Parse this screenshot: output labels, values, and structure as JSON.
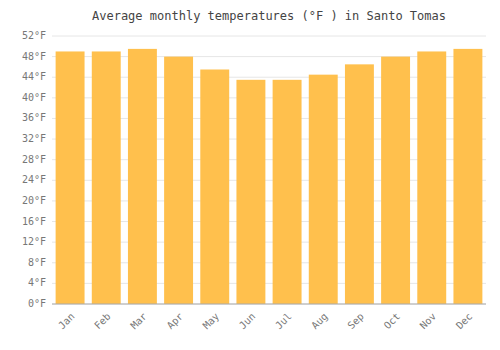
{
  "chart_data": {
    "type": "bar",
    "title": "Average monthly temperatures (°F ) in Santo Tomas",
    "categories": [
      "Jan",
      "Feb",
      "Mar",
      "Apr",
      "May",
      "Jun",
      "Jul",
      "Aug",
      "Sep",
      "Oct",
      "Nov",
      "Dec"
    ],
    "values": [
      49.0,
      49.0,
      49.5,
      48.0,
      45.5,
      43.5,
      43.5,
      44.5,
      46.5,
      48.0,
      49.0,
      49.5
    ],
    "color": "#FFC04D",
    "ylim": [
      0,
      52
    ],
    "yticks": [
      {
        "value": 0,
        "label": "0°F"
      },
      {
        "value": 4,
        "label": "4°F"
      },
      {
        "value": 8,
        "label": "8°F"
      },
      {
        "value": 12,
        "label": "12°F"
      },
      {
        "value": 16,
        "label": "16°F"
      },
      {
        "value": 20,
        "label": "20°F"
      },
      {
        "value": 24,
        "label": "24°F"
      },
      {
        "value": 28,
        "label": "28°F"
      },
      {
        "value": 32,
        "label": "32°F"
      },
      {
        "value": 36,
        "label": "36°F"
      },
      {
        "value": 40,
        "label": "40°F"
      },
      {
        "value": 44,
        "label": "44°F"
      },
      {
        "value": 48,
        "label": "48°F"
      },
      {
        "value": 52,
        "label": "52°F"
      }
    ],
    "grid": true
  }
}
